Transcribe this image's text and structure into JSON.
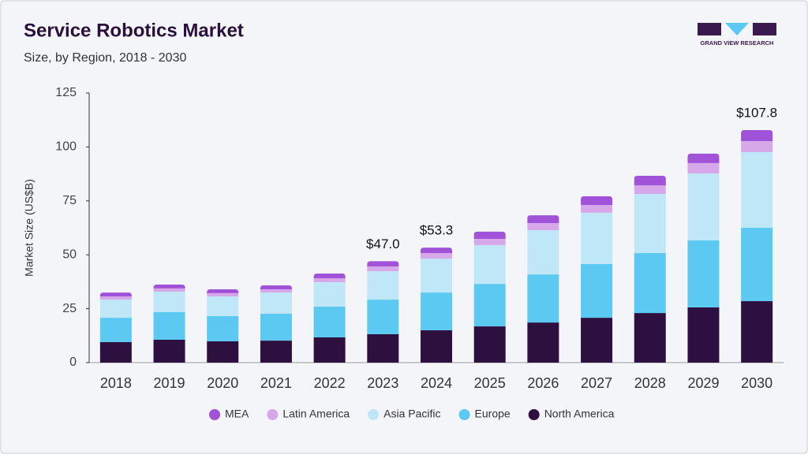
{
  "logo": "GRAND VIEW RESEARCH",
  "chart_data": {
    "type": "stacked-bar",
    "title": "Service Robotics Market",
    "subtitle": "Size, by Region, 2018 - 2030",
    "y_label": "Market Size (US$B)",
    "categories": [
      "2018",
      "2019",
      "2020",
      "2021",
      "2022",
      "2023",
      "2024",
      "2025",
      "2026",
      "2027",
      "2028",
      "2029",
      "2030"
    ],
    "series": [
      {
        "name": "MEA",
        "color": "#a052d8",
        "values": [
          1.8,
          1.8,
          1.8,
          1.8,
          2.2,
          2.4,
          2.5,
          3.3,
          3.6,
          4.0,
          4.4,
          4.4,
          5.1
        ]
      },
      {
        "name": "Latin America",
        "color": "#d6a8ea",
        "values": [
          1.5,
          1.5,
          1.5,
          1.5,
          1.8,
          2.2,
          2.6,
          2.9,
          3.3,
          3.6,
          4.0,
          4.8,
          5.1
        ]
      },
      {
        "name": "Asia Pacific",
        "color": "#c0e7f8",
        "values": [
          8.4,
          9.5,
          9.1,
          9.8,
          11.3,
          13.2,
          15.7,
          18.0,
          20.5,
          23.8,
          27.4,
          31.0,
          35.1
        ]
      },
      {
        "name": "Europe",
        "color": "#5bc9f1",
        "values": [
          11.3,
          12.8,
          11.7,
          12.5,
          14.3,
          16.0,
          17.5,
          19.7,
          22.3,
          24.9,
          27.8,
          31.1,
          34.0
        ]
      },
      {
        "name": "North America",
        "color": "#2e1040",
        "values": [
          9.5,
          10.6,
          9.9,
          10.2,
          11.7,
          13.2,
          15.0,
          16.8,
          18.6,
          20.8,
          23.0,
          25.6,
          28.5
        ]
      }
    ],
    "annotations": [
      {
        "category": "2023",
        "value": 47.0,
        "label": "$47.0"
      },
      {
        "category": "2024",
        "value": 53.3,
        "label": "$53.3"
      },
      {
        "category": "2030",
        "value": 107.8,
        "label": "$107.8"
      }
    ],
    "ylim": [
      0,
      125
    ],
    "yticks": [
      0,
      25,
      50,
      75,
      100,
      125
    ],
    "grid": false
  }
}
